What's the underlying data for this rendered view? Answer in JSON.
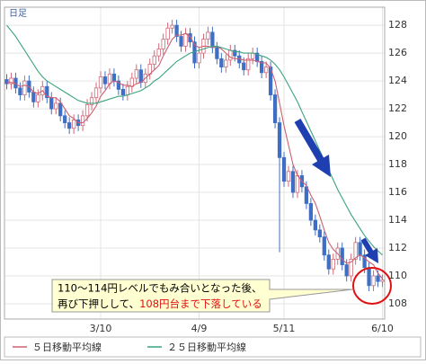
{
  "chart_data": {
    "type": "candlestick",
    "label": "日足",
    "categories": [
      null,
      null,
      null,
      null,
      null,
      null,
      null,
      null,
      null,
      null,
      null,
      null,
      null,
      null,
      null,
      null,
      null,
      null,
      null,
      null,
      null,
      "3/10",
      null,
      null,
      null,
      null,
      null,
      null,
      null,
      null,
      null,
      null,
      null,
      null,
      null,
      null,
      null,
      null,
      null,
      null,
      null,
      null,
      null,
      "4/9",
      null,
      null,
      null,
      null,
      null,
      null,
      null,
      null,
      null,
      null,
      null,
      null,
      null,
      null,
      null,
      null,
      null,
      null,
      "5/11",
      null,
      null,
      null,
      null,
      null,
      null,
      null,
      null,
      null,
      null,
      null,
      null,
      null,
      null,
      null,
      null,
      null,
      null,
      null,
      null,
      null,
      "6/10"
    ],
    "open": [
      124.1,
      123.8,
      124.2,
      123.5,
      123.0,
      124.0,
      123.2,
      122.5,
      123.0,
      123.6,
      122.8,
      122.0,
      122.4,
      121.5,
      121.0,
      120.6,
      121.2,
      120.8,
      121.5,
      122.3,
      122.8,
      123.5,
      124.3,
      123.8,
      124.5,
      124.0,
      123.4,
      123.0,
      123.6,
      124.2,
      124.8,
      123.9,
      124.5,
      125.2,
      125.8,
      126.3,
      127.0,
      127.8,
      128.0,
      127.2,
      126.5,
      127.4,
      126.8,
      125.3,
      126.0,
      127.0,
      127.5,
      126.4,
      125.6,
      125.0,
      125.5,
      126.2,
      125.8,
      125.3,
      124.8,
      125.6,
      126.0,
      125.4,
      124.6,
      125.0,
      123.0,
      121.0,
      118.5,
      116.8,
      117.5,
      116.0,
      117.2,
      116.4,
      115.2,
      114.0,
      113.3,
      112.8,
      111.5,
      110.5,
      111.2,
      112.0,
      110.8,
      110.0,
      111.2,
      112.4,
      111.5,
      110.6,
      109.3,
      110.0,
      109.6
    ],
    "high": [
      124.5,
      124.6,
      124.6,
      123.9,
      124.4,
      124.4,
      123.6,
      123.4,
      124.0,
      124.0,
      123.2,
      122.8,
      122.8,
      121.9,
      121.4,
      121.6,
      121.6,
      121.9,
      122.7,
      123.2,
      123.9,
      124.7,
      124.7,
      124.9,
      124.9,
      124.4,
      123.8,
      124.0,
      124.6,
      125.2,
      125.2,
      124.9,
      125.6,
      126.2,
      126.7,
      127.4,
      128.2,
      128.4,
      128.4,
      127.6,
      127.8,
      127.8,
      127.2,
      126.4,
      127.4,
      127.9,
      127.9,
      126.8,
      126.0,
      125.9,
      126.6,
      126.6,
      126.2,
      125.7,
      126.0,
      126.4,
      126.4,
      125.8,
      125.4,
      125.4,
      123.4,
      121.4,
      118.9,
      117.9,
      117.9,
      117.6,
      117.6,
      116.8,
      115.6,
      114.4,
      113.7,
      113.2,
      111.9,
      111.6,
      112.4,
      112.4,
      111.2,
      111.6,
      112.8,
      112.8,
      111.9,
      111.0,
      110.4,
      110.4,
      110.1
    ],
    "low": [
      123.4,
      123.4,
      123.1,
      122.6,
      122.6,
      122.8,
      122.1,
      122.1,
      122.6,
      122.4,
      121.6,
      121.6,
      121.1,
      120.6,
      120.2,
      120.2,
      120.4,
      120.4,
      121.1,
      121.9,
      122.4,
      123.1,
      123.4,
      123.4,
      123.6,
      123.0,
      122.6,
      122.6,
      123.2,
      123.8,
      123.5,
      123.5,
      124.1,
      124.8,
      125.4,
      125.9,
      126.6,
      127.4,
      126.8,
      126.1,
      126.1,
      126.4,
      124.9,
      124.9,
      125.6,
      126.6,
      126.0,
      125.2,
      124.6,
      124.6,
      125.1,
      125.4,
      124.9,
      124.4,
      124.4,
      125.2,
      125.0,
      124.2,
      124.2,
      122.6,
      120.6,
      111.7,
      116.4,
      116.4,
      115.6,
      115.6,
      116.0,
      114.8,
      113.6,
      112.9,
      112.4,
      111.1,
      110.1,
      110.1,
      110.8,
      110.4,
      109.6,
      109.6,
      110.8,
      111.1,
      110.2,
      108.9,
      108.9,
      109.2,
      109.2
    ],
    "close": [
      123.8,
      124.2,
      123.5,
      123.0,
      124.0,
      123.2,
      122.5,
      123.0,
      123.6,
      122.8,
      122.0,
      122.4,
      121.5,
      121.0,
      120.6,
      121.2,
      120.8,
      121.5,
      122.3,
      122.8,
      123.5,
      124.3,
      123.8,
      124.5,
      124.0,
      123.4,
      123.0,
      123.6,
      124.2,
      124.8,
      123.9,
      124.5,
      125.2,
      125.8,
      126.3,
      127.0,
      127.8,
      128.0,
      127.2,
      126.5,
      127.4,
      126.8,
      125.3,
      126.0,
      127.0,
      127.5,
      126.4,
      125.6,
      125.0,
      125.5,
      126.2,
      125.8,
      125.3,
      124.8,
      125.6,
      126.0,
      125.4,
      124.6,
      125.0,
      123.0,
      121.0,
      118.5,
      116.8,
      117.5,
      116.0,
      117.2,
      116.4,
      115.2,
      114.0,
      113.3,
      112.8,
      111.5,
      110.5,
      111.2,
      112.0,
      110.8,
      110.0,
      111.2,
      112.4,
      111.5,
      110.6,
      109.3,
      110.0,
      109.6,
      109.7
    ],
    "up_color": "#d06878",
    "down_color": "#3f6fc4",
    "series": [
      {
        "name": "５日移動平均線",
        "color": "#cc6070",
        "values": [
          123.9,
          123.9,
          123.8,
          123.6,
          123.7,
          123.6,
          123.2,
          123.1,
          123.3,
          122.9,
          122.8,
          122.8,
          122.5,
          122.0,
          121.5,
          121.3,
          121.0,
          121.0,
          121.3,
          121.7,
          122.2,
          122.9,
          123.3,
          123.8,
          124.0,
          123.9,
          123.7,
          123.7,
          123.6,
          123.8,
          123.9,
          124.2,
          124.5,
          124.8,
          125.1,
          125.8,
          126.4,
          127.0,
          127.3,
          127.3,
          127.4,
          127.2,
          126.6,
          126.4,
          126.5,
          126.5,
          126.4,
          126.5,
          126.3,
          126.0,
          125.7,
          125.6,
          125.6,
          125.5,
          125.5,
          125.5,
          125.4,
          125.3,
          125.3,
          124.9,
          124.0,
          122.4,
          120.8,
          119.4,
          118.0,
          117.2,
          116.8,
          116.5,
          115.8,
          115.2,
          114.3,
          113.3,
          112.4,
          111.9,
          111.6,
          111.2,
          110.9,
          111.0,
          111.3,
          111.5,
          111.3,
          111.0,
          110.8,
          110.2,
          109.8
        ]
      },
      {
        "name": "２５日移動平均線",
        "color": "#3aa37e",
        "values": [
          128.0,
          127.6,
          127.2,
          126.7,
          126.2,
          125.7,
          125.2,
          124.7,
          124.3,
          124.0,
          123.8,
          123.6,
          123.4,
          123.2,
          123.0,
          122.8,
          122.6,
          122.5,
          122.4,
          122.4,
          122.4,
          122.5,
          122.6,
          122.7,
          122.8,
          122.9,
          122.9,
          123.0,
          123.1,
          123.2,
          123.3,
          123.5,
          123.7,
          124.0,
          124.2,
          124.5,
          124.8,
          125.1,
          125.4,
          125.6,
          125.8,
          126.0,
          126.1,
          126.2,
          126.3,
          126.4,
          126.5,
          126.5,
          126.4,
          126.3,
          126.2,
          126.1,
          126.1,
          126.0,
          126.0,
          126.0,
          125.9,
          125.8,
          125.7,
          125.5,
          125.2,
          124.8,
          124.3,
          123.7,
          123.1,
          122.5,
          121.8,
          121.1,
          120.4,
          119.7,
          119.0,
          118.3,
          117.6,
          116.9,
          116.2,
          115.6,
          115.0,
          114.4,
          113.9,
          113.4,
          112.9,
          112.5,
          112.1,
          111.8,
          111.5
        ]
      }
    ],
    "ylim": [
      106.9,
      129.3
    ],
    "yticks": [
      108,
      110,
      112,
      114,
      116,
      118,
      120,
      122,
      124,
      126,
      128
    ],
    "grid": true,
    "annotation": [
      "110～114円レベルでもみ合いとなった後、",
      "再び下押しして、",
      "108円台まで下落している"
    ]
  }
}
